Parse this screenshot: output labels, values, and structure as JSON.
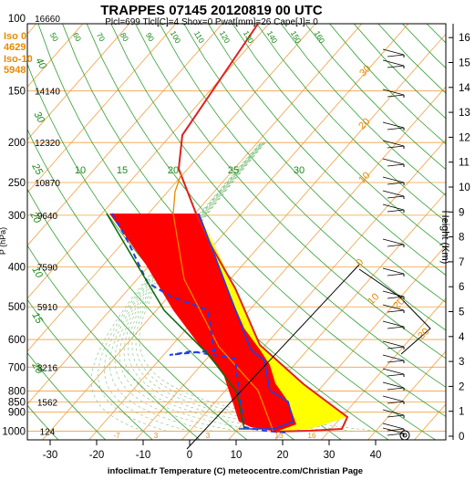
{
  "chart_data": {
    "type": "line",
    "title": "TRAPPES 07145 20120819 00 UTC",
    "subtitle": "Plcl=699 Tlcl[C]=4 Shox=0 Pwat[mm]=26 Cape[J]= 0",
    "ylabel": "P (hPa)",
    "y2label": "Height (Km)",
    "footer": "infoclimat.fr Temperature (C) meteocentre.com/Christian Page",
    "iso_labels": [
      "Iso 0",
      "4629",
      "Iso-10",
      "5948"
    ],
    "pressure_ticks": [
      100,
      150,
      200,
      250,
      300,
      400,
      500,
      600,
      700,
      800,
      850,
      900,
      1000
    ],
    "pressure_ticks_text": [
      "100",
      "150",
      "200",
      "250",
      "300",
      "400",
      "500",
      "600",
      "700",
      "800",
      "850",
      "900",
      "1000"
    ],
    "height_labels": [
      "16660",
      "14140",
      "12320",
      "10870",
      "9640",
      "7590",
      "5910",
      "3216",
      "1562",
      "124"
    ],
    "height_label_pressures": [
      100,
      150,
      200,
      250,
      300,
      400,
      500,
      700,
      850,
      1000
    ],
    "temp_ticks": [
      -30,
      -20,
      -10,
      0,
      10,
      20,
      30,
      40
    ],
    "temp_ticks_text": [
      "-30",
      "-20",
      "-10",
      "0",
      "10",
      "20",
      "30",
      "40"
    ],
    "temp_range": [
      -35,
      50
    ],
    "km_ticks": [
      0,
      1,
      2,
      3,
      4,
      5,
      6,
      7,
      8,
      9,
      10,
      11,
      12,
      13,
      14,
      15,
      16
    ],
    "km_ticks_text": [
      "0",
      "1",
      "2",
      "3",
      "4",
      "5",
      "6",
      "7",
      "8",
      "9",
      "10",
      "11",
      "12",
      "13",
      "14",
      "15",
      "16"
    ],
    "mixing_ratio_labels": [
      "10",
      "15",
      "20",
      "25",
      "30"
    ],
    "saturated_adiabat_labels": [
      "50",
      "60",
      "70",
      "80",
      "90",
      "100",
      "110",
      "120",
      "130",
      "140",
      "150",
      "160"
    ],
    "dry_adiabat_labels": [
      "40",
      "30",
      "25",
      "20",
      "10",
      "15",
      "20"
    ],
    "isotherm_side_labels": [
      "30",
      "20",
      "10",
      "0",
      "10",
      "20",
      "30"
    ],
    "bottom_isotherm_labels": [
      "-7",
      "3",
      "3",
      "13",
      "16"
    ],
    "series": [
      {
        "name": "temperature",
        "color": "#e02020",
        "p": [
          1000,
          950,
          925,
          900,
          850,
          800,
          750,
          700,
          650,
          600,
          550,
          500,
          450,
          400,
          350,
          300,
          250,
          220,
          200,
          175,
          150,
          125,
          100
        ],
        "t": [
          20,
          24,
          23,
          21,
          17,
          14,
          11,
          8,
          5,
          2,
          -2,
          -7,
          -12,
          -17,
          -24,
          -33,
          -41,
          -45,
          -48,
          -49,
          -51,
          -52,
          -54
        ]
      },
      {
        "name": "dewpoint",
        "color": "#2040e0",
        "p": [
          1000,
          950,
          925,
          900,
          850,
          800,
          750,
          700,
          650,
          640,
          600,
          550,
          500,
          480,
          450,
          400,
          350,
          300
        ],
        "t": [
          16,
          14,
          14,
          15,
          14,
          11,
          8,
          7,
          5,
          -3,
          0,
          -7,
          -8,
          -10,
          -20,
          -28,
          -33,
          -40
        ]
      },
      {
        "name": "parcel",
        "color": "#e88a00",
        "p": [
          1000,
          900,
          800,
          700,
          600,
          500,
          400,
          300,
          250,
          200
        ],
        "t": [
          16,
          10,
          4,
          -2,
          -9,
          -18,
          -29,
          -44,
          -55,
          -68
        ]
      }
    ],
    "grid": true
  }
}
